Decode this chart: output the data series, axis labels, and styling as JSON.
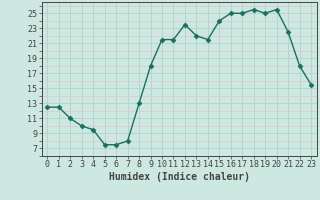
{
  "x": [
    0,
    1,
    2,
    3,
    4,
    5,
    6,
    7,
    8,
    9,
    10,
    11,
    12,
    13,
    14,
    15,
    16,
    17,
    18,
    19,
    20,
    21,
    22,
    23
  ],
  "y": [
    12.5,
    12.5,
    11,
    10,
    9.5,
    7.5,
    7.5,
    8,
    13,
    18,
    21.5,
    21.5,
    23.5,
    22,
    21.5,
    24,
    25,
    25,
    25.5,
    25,
    25.5,
    22.5,
    18,
    15.5
  ],
  "line_color": "#1a7060",
  "marker": "D",
  "markersize": 2.5,
  "linewidth": 1.0,
  "bg_color": "#cce8e0",
  "minor_grid_color": "#e0c8c8",
  "major_grid_color": "#b8d4cc",
  "xlabel": "Humidex (Indice chaleur)",
  "xlabel_fontsize": 7,
  "yticks": [
    7,
    9,
    11,
    13,
    15,
    17,
    19,
    21,
    23,
    25
  ],
  "xticks": [
    0,
    1,
    2,
    3,
    4,
    5,
    6,
    7,
    8,
    9,
    10,
    11,
    12,
    13,
    14,
    15,
    16,
    17,
    18,
    19,
    20,
    21,
    22,
    23
  ],
  "ylim": [
    6.0,
    26.5
  ],
  "xlim": [
    -0.5,
    23.5
  ],
  "tick_fontsize": 6,
  "axis_color": "#444444"
}
